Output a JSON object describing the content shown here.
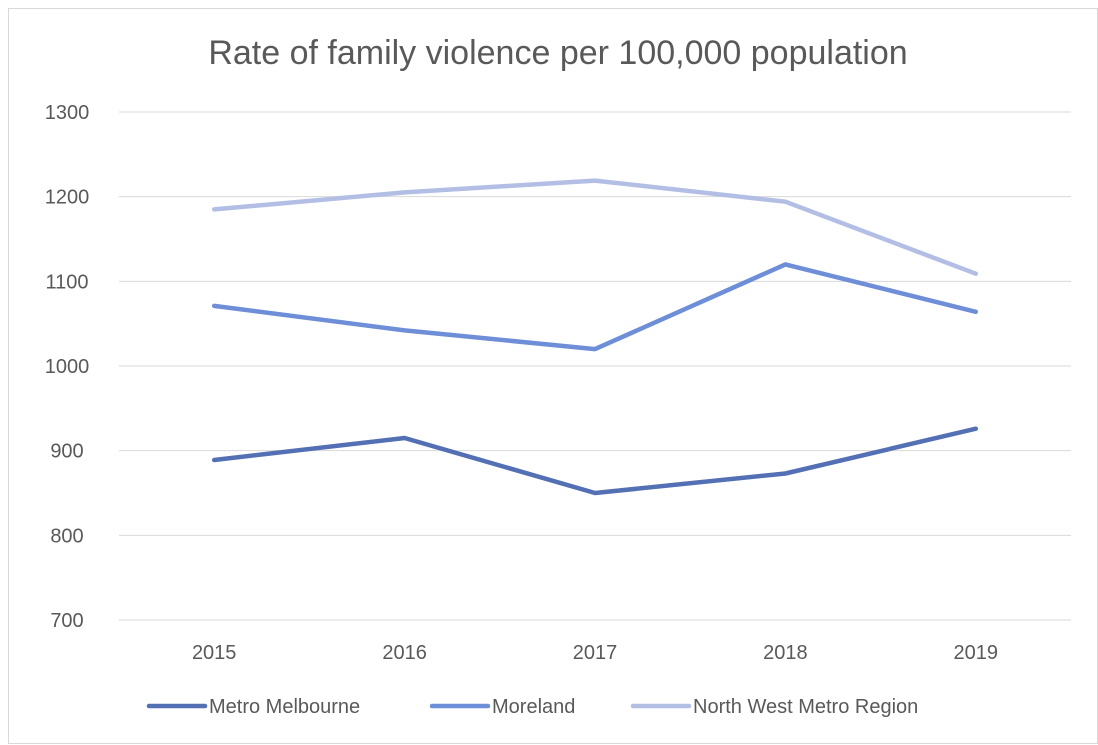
{
  "chart_data": {
    "type": "line",
    "title": "Rate of family violence per 100,000 population",
    "xlabel": "",
    "ylabel": "",
    "categories": [
      "2015",
      "2016",
      "2017",
      "2018",
      "2019"
    ],
    "ylim": [
      700,
      1300
    ],
    "yticks": [
      "700",
      "800",
      "900",
      "1000",
      "1100",
      "1200",
      "1300"
    ],
    "grid": true,
    "legend_position": "bottom",
    "series": [
      {
        "name": "Metro Melbourne",
        "color": "#5470b4",
        "values": [
          889,
          915,
          850,
          873,
          926
        ]
      },
      {
        "name": "Moreland",
        "color": "#6e8ed8",
        "values": [
          1071,
          1042,
          1020,
          1120,
          1064
        ]
      },
      {
        "name": "North West Metro Region",
        "color": "#b3bee5",
        "values": [
          1185,
          1205,
          1219,
          1194,
          1109
        ]
      }
    ]
  }
}
